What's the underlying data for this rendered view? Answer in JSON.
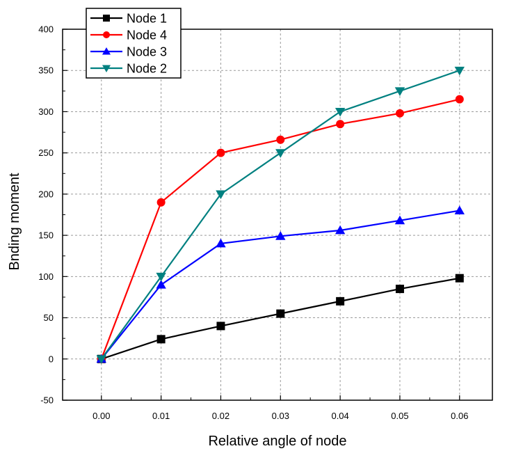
{
  "chart_data": {
    "type": "line",
    "title": "",
    "xlabel": "Relative angle of node",
    "ylabel": "Bnding moment",
    "x": [
      0.0,
      0.01,
      0.02,
      0.03,
      0.04,
      0.05,
      0.06
    ],
    "x_tick_labels": [
      "0.00",
      "0.01",
      "0.02",
      "0.03",
      "0.04",
      "0.05",
      "0.06"
    ],
    "y_ticks": [
      -50,
      0,
      50,
      100,
      150,
      200,
      250,
      300,
      350,
      400
    ],
    "y_tick_labels": [
      "-50",
      "0",
      "50",
      "100",
      "150",
      "200",
      "250",
      "300",
      "350",
      "400"
    ],
    "xlim": [
      -0.0065,
      0.0655
    ],
    "ylim": [
      -50,
      400
    ],
    "grid": true,
    "legend_position": "top-left",
    "series": [
      {
        "name": "Node 1",
        "color": "#000000",
        "marker": "square",
        "values": [
          0,
          24,
          40,
          55,
          70,
          85,
          98
        ]
      },
      {
        "name": "Node 4",
        "color": "#ff0000",
        "marker": "circle",
        "values": [
          0,
          190,
          250,
          266,
          285,
          298,
          315
        ]
      },
      {
        "name": "Node 3",
        "color": "#0000ff",
        "marker": "triangle-up",
        "values": [
          0,
          90,
          140,
          149,
          156,
          168,
          180
        ]
      },
      {
        "name": "Node 2",
        "color": "#008080",
        "marker": "triangle-down",
        "values": [
          0,
          100,
          200,
          250,
          300,
          325,
          350
        ]
      }
    ]
  }
}
